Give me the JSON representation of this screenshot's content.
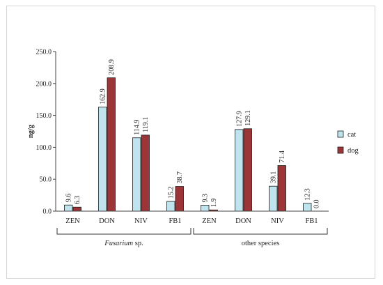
{
  "chart_data": {
    "type": "bar",
    "ylabel": "ng/g",
    "ylim": [
      0,
      250
    ],
    "yticks": [
      "0.0",
      "50.0",
      "100.0",
      "150.0",
      "200.0",
      "250.0"
    ],
    "categories": [
      "ZEN",
      "DON",
      "NIV",
      "FB1",
      "ZEN",
      "DON",
      "NIV",
      "FB1"
    ],
    "groups": [
      {
        "label_italic": "Fusarium",
        "label_rest": " sp.",
        "count": 4
      },
      {
        "label_italic": "",
        "label_rest": "other species",
        "count": 4
      }
    ],
    "series": [
      {
        "name": "cat",
        "color": "#bfe4ee",
        "values": [
          9.6,
          162.9,
          114.9,
          15.2,
          9.3,
          127.9,
          39.1,
          12.3
        ],
        "labels": [
          "9.6",
          "162.9",
          "114.9",
          "15.2",
          "9.3",
          "127.9",
          "39.1",
          "12.3"
        ]
      },
      {
        "name": "dog",
        "color": "#9b3537",
        "values": [
          6.3,
          208.9,
          119.1,
          38.7,
          1.9,
          129.1,
          71.4,
          0.0
        ],
        "labels": [
          "6.3",
          "208.9",
          "119.1",
          "38.7",
          "1.9",
          "129.1",
          "71.4",
          "0.0"
        ]
      }
    ],
    "legend": "right",
    "grid": false
  }
}
